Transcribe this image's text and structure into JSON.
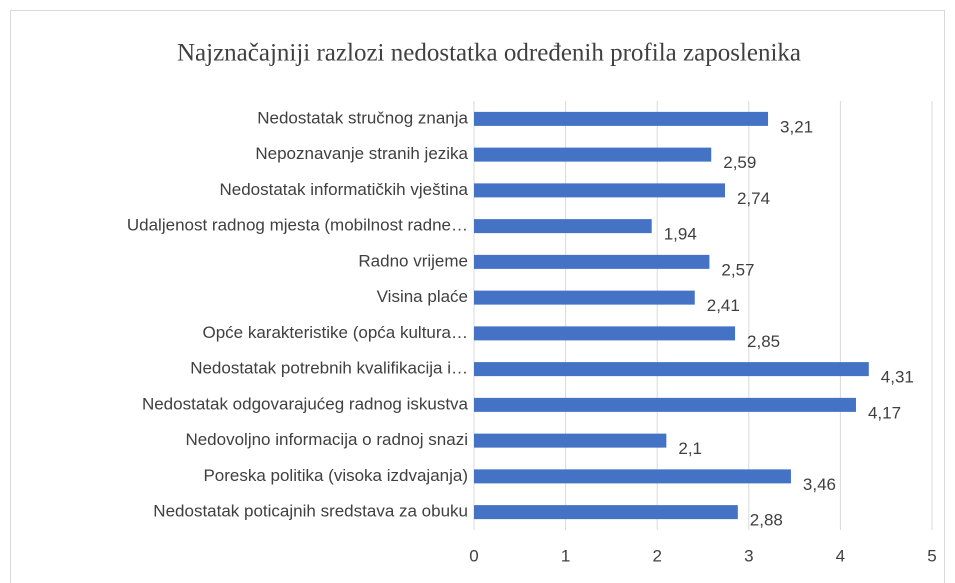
{
  "chart_data": {
    "type": "bar",
    "orientation": "horizontal",
    "title": "Najznačajniji razlozi nedostatka određenih profila zaposlenika",
    "categories": [
      "Nedostatak stručnog znanja",
      "Nepoznavanje stranih jezika",
      "Nedostatak informatičkih vještina",
      "Udaljenost radnog mjesta (mobilnost radne…",
      "Radno vrijeme",
      "Visina plaće",
      "Opće karakteristike (opća kultura…",
      "Nedostatak potrebnih kvalifikacija  i…",
      "Nedostatak odgovarajućeg radnog iskustva",
      "Nedovoljno informacija o radnoj snazi",
      "Poreska politika (visoka izdvajanja)",
      "Nedostatak poticajnih sredstava za obuku"
    ],
    "values": [
      3.21,
      2.59,
      2.74,
      1.94,
      2.57,
      2.41,
      2.85,
      4.31,
      4.17,
      2.1,
      3.46,
      2.88
    ],
    "value_labels": [
      "3,21",
      "2,59",
      "2,74",
      "1,94",
      "2,57",
      "2,41",
      "2,85",
      "4,31",
      "4,17",
      "2,1",
      "3,46",
      "2,88"
    ],
    "color": "#4472c4",
    "xlim": [
      0,
      5
    ],
    "xticks": [
      0,
      1,
      2,
      3,
      4,
      5
    ],
    "grid": true
  }
}
